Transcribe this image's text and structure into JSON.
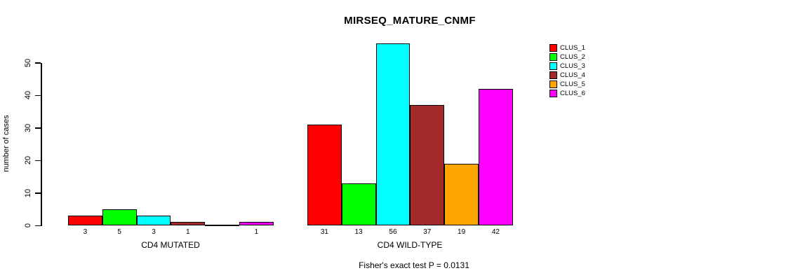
{
  "page": {
    "background": "#FFFFFF",
    "text_color": "#000000",
    "axis_color": "#000000"
  },
  "chart_data": {
    "type": "bar",
    "title": "MIRSEQ_MATURE_CNMF",
    "ylabel": "number of cases",
    "xlabel": "",
    "categories": [
      "CD4 MUTATED",
      "CD4 WILD-TYPE"
    ],
    "series": [
      {
        "name": "CLUS_1",
        "color": "#FF0000",
        "values": [
          3,
          31
        ]
      },
      {
        "name": "CLUS_2",
        "color": "#00FF00",
        "values": [
          5,
          13
        ]
      },
      {
        "name": "CLUS_3",
        "color": "#00FFFF",
        "values": [
          3,
          56
        ]
      },
      {
        "name": "CLUS_4",
        "color": "#A52A2A",
        "values": [
          1,
          37
        ]
      },
      {
        "name": "CLUS_5",
        "color": "#FFA500",
        "values": [
          0,
          19
        ]
      },
      {
        "name": "CLUS_6",
        "color": "#FF00FF",
        "values": [
          1,
          42
        ]
      }
    ],
    "yticks": [
      0,
      10,
      20,
      30,
      40,
      50
    ],
    "ylim": [
      0,
      56
    ],
    "grid": false,
    "legend_position": "right",
    "bar_value_labels_shown": true,
    "zero_value_bars_drawn_as_baseline_segment": true,
    "annotation": "Fisher's exact test P = 0.0131"
  }
}
